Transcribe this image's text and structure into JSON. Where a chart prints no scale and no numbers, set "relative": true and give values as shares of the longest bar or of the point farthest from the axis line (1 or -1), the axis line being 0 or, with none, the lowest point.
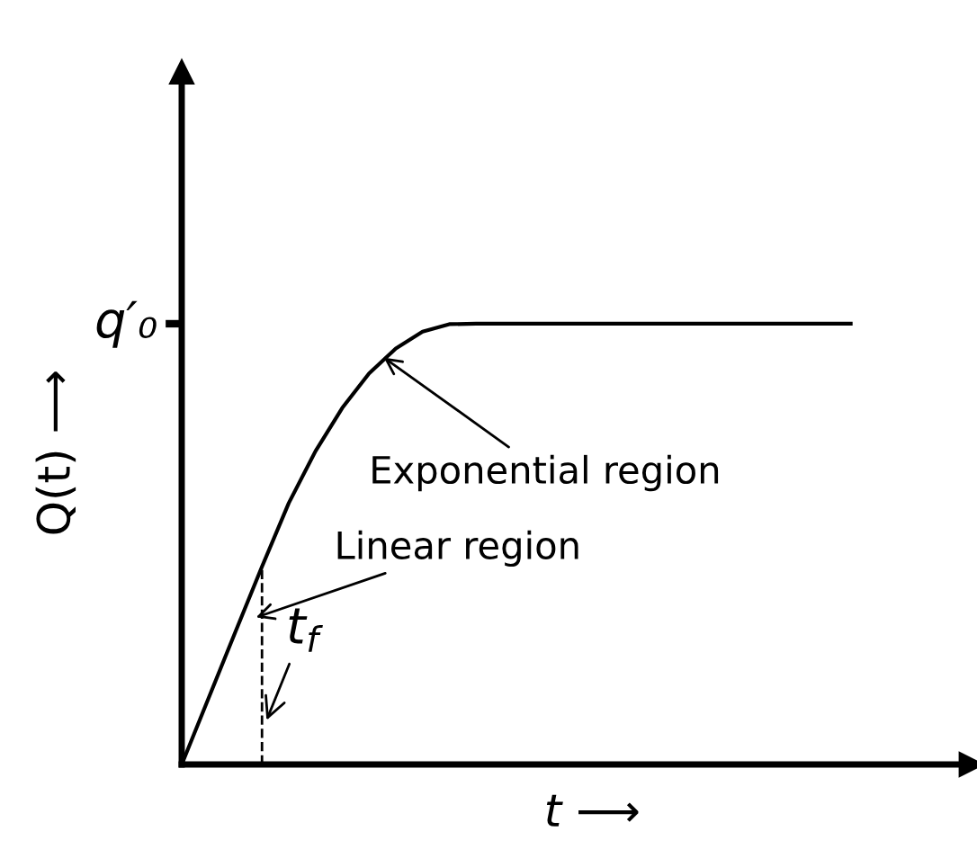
{
  "chart_data": {
    "type": "line",
    "relative": true,
    "xlabel": "t ⟶",
    "ylabel": "Q(t) ⟶",
    "categories": [
      null,
      null,
      null,
      null,
      null,
      null,
      null,
      null,
      null,
      null,
      null,
      null,
      null,
      null,
      null,
      null,
      null,
      null,
      null,
      null,
      null,
      null,
      null,
      null,
      null,
      null
    ],
    "series": [
      {
        "color": "#000000",
        "values": [
          0,
          0.15,
          0.3,
          0.449,
          0.593,
          0.711,
          0.809,
          0.887,
          0.944,
          0.982,
          0.999,
          1,
          1,
          1,
          1,
          1,
          1,
          1,
          1,
          1,
          1,
          1,
          1,
          1,
          1,
          1
        ]
      }
    ],
    "annotations": [
      "Exponential region",
      "Linear region",
      "t$_{f}$",
      "q′₀"
    ],
    "grid": false,
    "legend": false,
    "marker": "none",
    "line_style": "solid"
  }
}
